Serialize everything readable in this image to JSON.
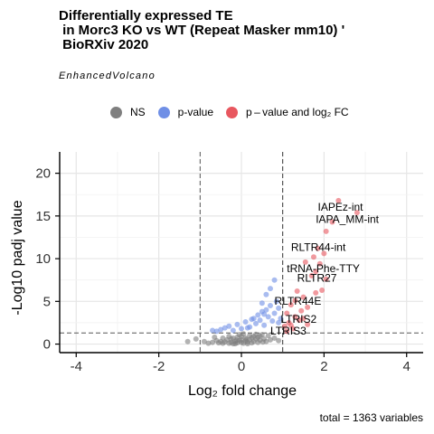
{
  "title": "Differentially expressed TE\n in Morc3 KO vs WT (Repeat Masker mm10) '\n BioRXiv 2020",
  "subtitle": "EnhancedVolcano",
  "legend": [
    {
      "label": "NS",
      "color": "#7f7f7f"
    },
    {
      "label": "p-value",
      "color": "#6f8fe6"
    },
    {
      "label": "p – value and log₂ FC",
      "color": "#e8575f"
    }
  ],
  "caption": "total = 1363 variables",
  "chart_data": {
    "type": "scatter",
    "title": "Differentially expressed TE\n in Morc3 KO vs WT (Repeat Masker mm10) '\n BioRXiv 2020",
    "xlabel": "Log₂ fold change",
    "ylabel": "-Log10 padj value",
    "xlim": [
      -4.4,
      4.4
    ],
    "ylim": [
      -1.0,
      22.5
    ],
    "x_ticks": [
      -4,
      -2,
      0,
      2,
      4
    ],
    "y_ticks": [
      0,
      5,
      10,
      15,
      20
    ],
    "grid": true,
    "fc_cutoff": 1.0,
    "p_cutoff_log10": 1.3,
    "colors": {
      "ns": "#7f7f7f",
      "p": "#6f8fe6",
      "both": "#e8575f"
    },
    "series": [
      {
        "name": "NS",
        "points": [
          [
            -0.3,
            0.1
          ],
          [
            -0.25,
            0.2
          ],
          [
            -0.2,
            0.05
          ],
          [
            -0.15,
            0.3
          ],
          [
            -0.1,
            0.15
          ],
          [
            -0.05,
            0.4
          ],
          [
            0,
            0.2
          ],
          [
            0.05,
            0.1
          ],
          [
            0.1,
            0.35
          ],
          [
            0.15,
            0.25
          ],
          [
            0.2,
            0.5
          ],
          [
            0.25,
            0.15
          ],
          [
            0.3,
            0.3
          ],
          [
            0.35,
            0.6
          ],
          [
            0.4,
            0.2
          ],
          [
            0.45,
            0.45
          ],
          [
            -0.4,
            0.25
          ],
          [
            -0.45,
            0.1
          ],
          [
            -0.5,
            0.3
          ],
          [
            -0.35,
            0.5
          ],
          [
            -0.2,
            0.7
          ],
          [
            -0.1,
            0.8
          ],
          [
            0,
            0.9
          ],
          [
            0.1,
            0.7
          ],
          [
            0.2,
            1.0
          ],
          [
            0.3,
            0.9
          ],
          [
            0.4,
            0.8
          ],
          [
            0.5,
            1.1
          ],
          [
            0.55,
            0.6
          ],
          [
            0.6,
            0.3
          ],
          [
            -0.55,
            0.15
          ],
          [
            -0.6,
            0.4
          ],
          [
            -0.7,
            0.2
          ],
          [
            -0.8,
            0.1
          ],
          [
            -0.9,
            0.3
          ],
          [
            0.7,
            0.5
          ],
          [
            0.8,
            0.7
          ],
          [
            0.9,
            0.4
          ],
          [
            -1.1,
            0.6
          ],
          [
            -1.3,
            0.3
          ],
          [
            0.05,
            1.2
          ],
          [
            -0.05,
            1.1
          ],
          [
            0.15,
            0.05
          ],
          [
            -0.15,
            0.05
          ],
          [
            0.25,
            0.75
          ],
          [
            -0.25,
            0.6
          ],
          [
            0.35,
            1.15
          ],
          [
            -0.3,
            0.9
          ],
          [
            0,
            0.5
          ],
          [
            0.45,
            0.95
          ],
          [
            -0.45,
            0.7
          ],
          [
            0.65,
            1.0
          ],
          [
            -0.65,
            0.8
          ],
          [
            0.12,
            0.55
          ],
          [
            -0.12,
            0.45
          ],
          [
            0.52,
            0.25
          ]
        ]
      },
      {
        "name": "p-value",
        "points": [
          [
            -0.6,
            1.5
          ],
          [
            -0.5,
            1.7
          ],
          [
            -0.3,
            2.1
          ],
          [
            -0.2,
            1.6
          ],
          [
            -0.1,
            2.3
          ],
          [
            0,
            1.8
          ],
          [
            0.1,
            2.6
          ],
          [
            0.2,
            2.0
          ],
          [
            0.3,
            3.0
          ],
          [
            0.35,
            2.4
          ],
          [
            0.4,
            3.4
          ],
          [
            0.45,
            2.8
          ],
          [
            0.5,
            3.8
          ],
          [
            0.55,
            2.2
          ],
          [
            0.6,
            4.0
          ],
          [
            0.65,
            3.2
          ],
          [
            0.7,
            4.5
          ],
          [
            0.75,
            2.7
          ],
          [
            0.8,
            3.6
          ],
          [
            0.85,
            5.0
          ],
          [
            0.9,
            4.2
          ],
          [
            0.95,
            3.0
          ],
          [
            0.6,
            5.8
          ],
          [
            0.7,
            6.5
          ],
          [
            0.8,
            7.5
          ],
          [
            0.5,
            4.8
          ],
          [
            0.25,
            2.9
          ],
          [
            0.15,
            1.9
          ],
          [
            -0.4,
            1.9
          ],
          [
            -0.7,
            1.6
          ],
          [
            0.9,
            2.5
          ],
          [
            0.55,
            3.5
          ]
        ]
      },
      {
        "name": "both",
        "points": [
          [
            2.35,
            16.8
          ],
          [
            2.8,
            15.4
          ],
          [
            2.2,
            14.3
          ],
          [
            2.05,
            13.2
          ],
          [
            1.85,
            11.2
          ],
          [
            2.0,
            10.6
          ],
          [
            1.75,
            10.2
          ],
          [
            1.9,
            9.4
          ],
          [
            1.55,
            9.6
          ],
          [
            1.8,
            8.5
          ],
          [
            1.7,
            8.0
          ],
          [
            2.05,
            7.6
          ],
          [
            1.95,
            6.3
          ],
          [
            1.8,
            6.0
          ],
          [
            1.5,
            5.5
          ],
          [
            1.3,
            5.1
          ],
          [
            1.2,
            4.6
          ],
          [
            1.6,
            4.3
          ],
          [
            1.45,
            3.9
          ],
          [
            1.1,
            3.6
          ],
          [
            1.3,
            3.2
          ],
          [
            1.4,
            2.8
          ],
          [
            1.15,
            2.5
          ],
          [
            1.05,
            2.1
          ],
          [
            1.25,
            1.8
          ],
          [
            1.1,
            1.5
          ],
          [
            1.6,
            2.3
          ],
          [
            1.35,
            6.2
          ],
          [
            1.5,
            3.0
          ],
          [
            1.2,
            2.2
          ]
        ]
      }
    ],
    "annotations": [
      {
        "text": "IAPEz-int",
        "x": 1.85,
        "y": 15.6
      },
      {
        "text": "IAPA_MM-int",
        "x": 1.8,
        "y": 14.2
      },
      {
        "text": "RLTR44-int",
        "x": 1.2,
        "y": 10.9
      },
      {
        "text": "tRNA-Phe-TTY",
        "x": 1.1,
        "y": 8.4
      },
      {
        "text": "RLTR27",
        "x": 1.35,
        "y": 7.3
      },
      {
        "text": "RLTR44E",
        "x": 0.8,
        "y": 4.6
      },
      {
        "text": "LTRIS2",
        "x": 0.95,
        "y": 2.5
      },
      {
        "text": "LTRIS3",
        "x": 0.7,
        "y": 1.1
      }
    ]
  }
}
